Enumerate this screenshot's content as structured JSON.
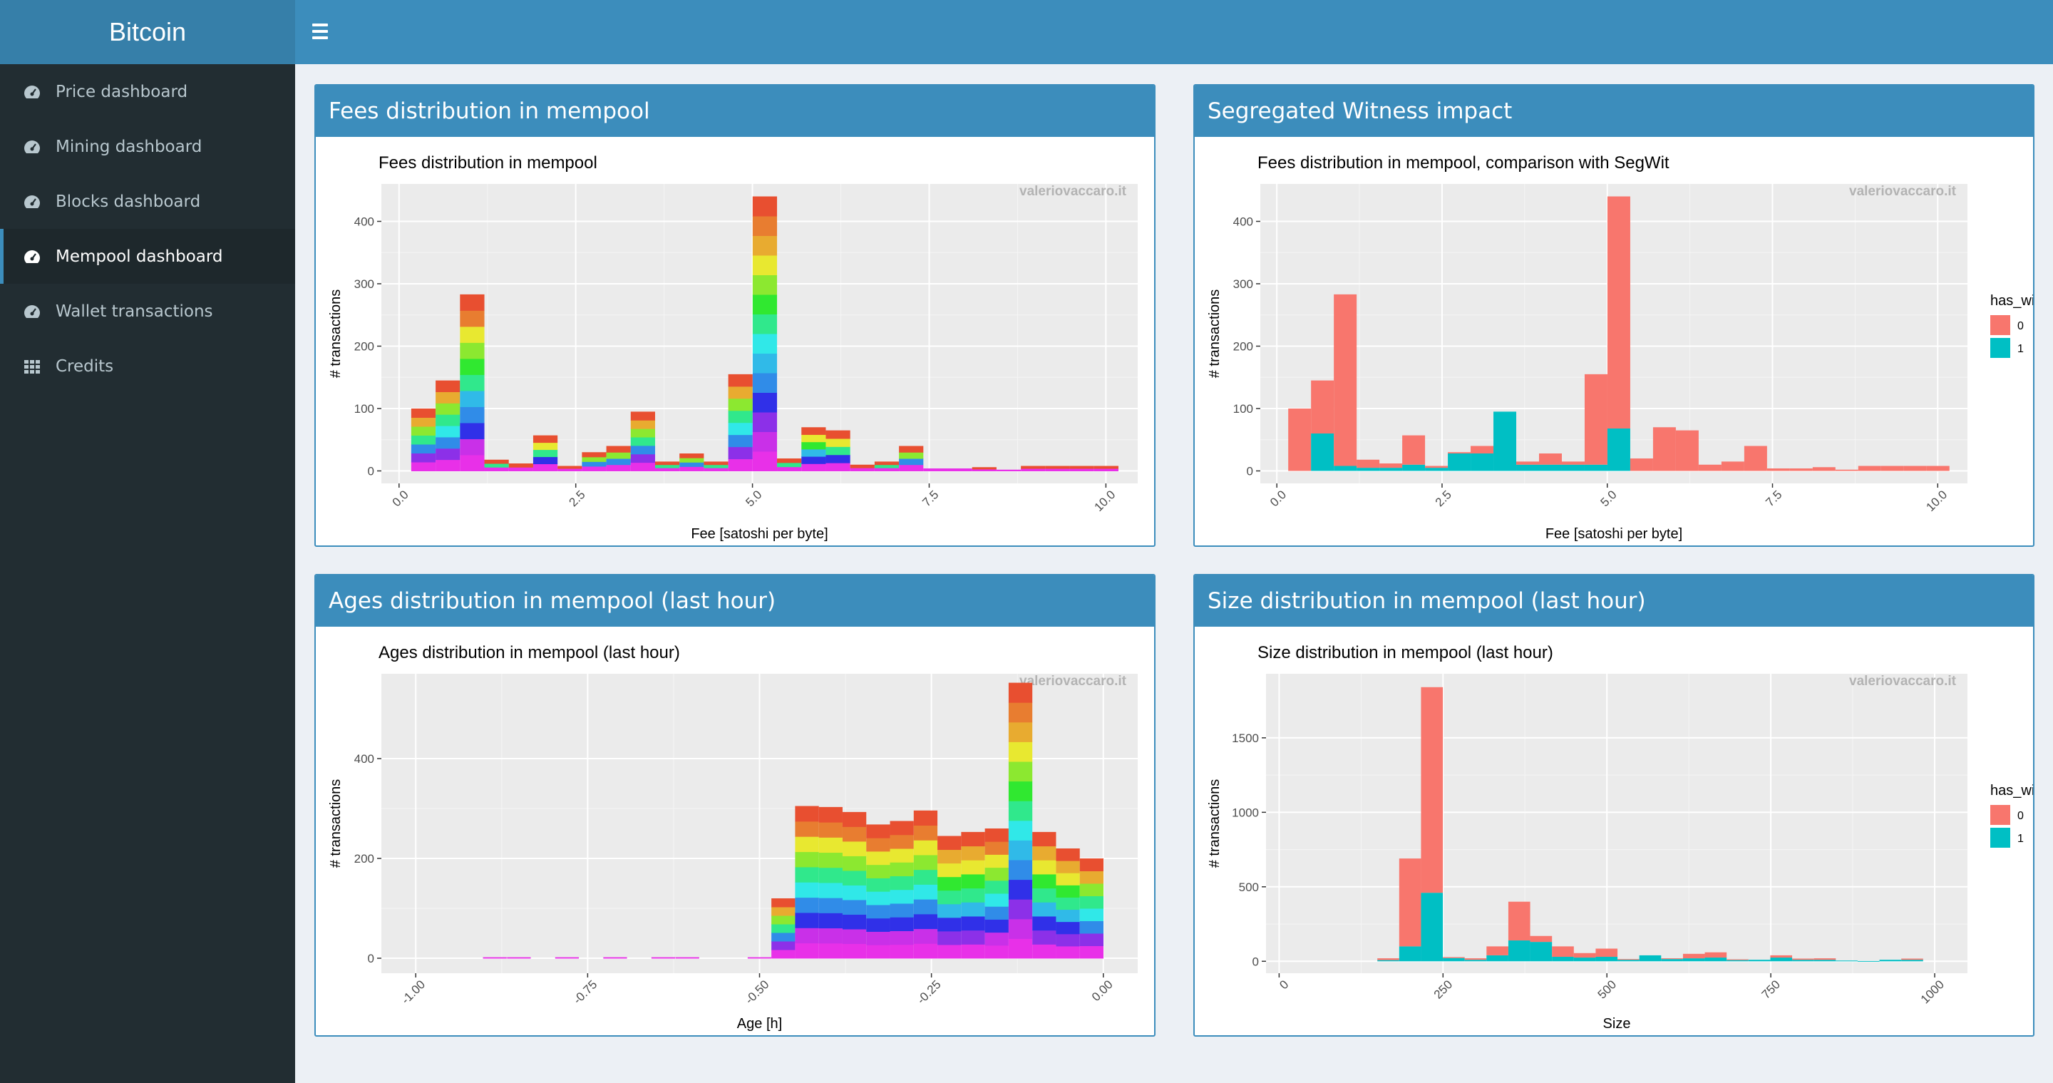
{
  "app": {
    "title": "Bitcoin"
  },
  "sidebar": {
    "items": [
      {
        "label": "Price dashboard",
        "icon": "dashboard-icon",
        "active": false
      },
      {
        "label": "Mining dashboard",
        "icon": "dashboard-icon",
        "active": false
      },
      {
        "label": "Blocks dashboard",
        "icon": "dashboard-icon",
        "active": false
      },
      {
        "label": "Mempool dashboard",
        "icon": "dashboard-icon",
        "active": true
      },
      {
        "label": "Wallet transactions",
        "icon": "dashboard-icon",
        "active": false
      },
      {
        "label": "Credits",
        "icon": "grid-icon",
        "active": false
      }
    ]
  },
  "boxes": {
    "fees": {
      "title": "Fees distribution in mempool"
    },
    "segwit": {
      "title": "Segregated Witness impact"
    },
    "ages": {
      "title": "Ages distribution in mempool (last hour)"
    },
    "size": {
      "title": "Size distribution in mempool (last hour)"
    }
  },
  "watermark": "valeriovaccaro.it",
  "chart_data": [
    {
      "id": "fees",
      "type": "bar",
      "stacked": "gradient",
      "title": "Fees distribution in mempool",
      "xlabel": "Fee [satoshi per byte]",
      "ylabel": "# transactions",
      "xlim": [
        -0.25,
        10.45
      ],
      "ylim": [
        -20,
        460
      ],
      "xticks": [
        0,
        2.5,
        5,
        7.5,
        10
      ],
      "xtick_labels": [
        "0.0",
        "2.5",
        "5.0",
        "7.5",
        "10.0"
      ],
      "yticks": [
        0,
        100,
        200,
        300,
        400
      ],
      "bin_width": 0.345,
      "x": [
        0.345,
        0.69,
        1.035,
        1.38,
        1.725,
        2.07,
        2.415,
        2.76,
        3.105,
        3.45,
        3.795,
        4.14,
        4.485,
        4.83,
        5.175,
        5.52,
        5.865,
        6.21,
        6.555,
        6.9,
        7.245,
        7.59,
        7.935,
        8.28,
        8.625,
        8.97,
        9.315,
        9.66,
        10.005
      ],
      "values": [
        100,
        145,
        283,
        18,
        12,
        57,
        8,
        30,
        40,
        95,
        15,
        28,
        15,
        155,
        440,
        20,
        70,
        65,
        10,
        15,
        40,
        4,
        4,
        6,
        2,
        8,
        8,
        8,
        8
      ]
    },
    {
      "id": "segwit",
      "type": "bar",
      "stacked": true,
      "title": "Fees distribution in mempool, comparison with SegWit",
      "xlabel": "Fee [satoshi per byte]",
      "ylabel": "# transactions",
      "xlim": [
        -0.25,
        10.45
      ],
      "ylim": [
        -20,
        460
      ],
      "xticks": [
        0,
        2.5,
        5,
        7.5,
        10
      ],
      "xtick_labels": [
        "0.0",
        "2.5",
        "5.0",
        "7.5",
        "10.0"
      ],
      "yticks": [
        0,
        100,
        200,
        300,
        400
      ],
      "bin_width": 0.345,
      "legend": {
        "title": "has_witness",
        "position": "right",
        "entries": [
          "0",
          "1"
        ]
      },
      "x": [
        0.345,
        0.69,
        1.035,
        1.38,
        1.725,
        2.07,
        2.415,
        2.76,
        3.105,
        3.45,
        3.795,
        4.14,
        4.485,
        4.83,
        5.175,
        5.52,
        5.865,
        6.21,
        6.555,
        6.9,
        7.245,
        7.59,
        7.935,
        8.28,
        8.625,
        8.97,
        9.315,
        9.66,
        10.005
      ],
      "series": [
        {
          "name": "1",
          "color": "#00bfc4",
          "values": [
            0,
            60,
            8,
            5,
            5,
            10,
            5,
            28,
            28,
            95,
            10,
            10,
            10,
            10,
            68,
            0,
            0,
            0,
            0,
            0,
            0,
            0,
            0,
            0,
            0,
            0,
            0,
            0,
            0
          ]
        },
        {
          "name": "0",
          "color": "#f8766d",
          "values": [
            100,
            85,
            275,
            13,
            7,
            47,
            3,
            2,
            12,
            0,
            5,
            18,
            5,
            145,
            372,
            20,
            70,
            65,
            10,
            15,
            40,
            4,
            4,
            6,
            2,
            8,
            8,
            8,
            8
          ]
        }
      ]
    },
    {
      "id": "ages",
      "type": "bar",
      "stacked": "gradient",
      "title": "Ages distribution in mempool (last hour)",
      "xlabel": "Age [h]",
      "ylabel": "# transactions",
      "xlim": [
        -1.05,
        0.05
      ],
      "ylim": [
        -30,
        570
      ],
      "xticks": [
        -1,
        -0.75,
        -0.5,
        -0.25,
        0
      ],
      "xtick_labels": [
        "-1.00",
        "-0.75",
        "-0.50",
        "-0.25",
        "0.00"
      ],
      "yticks": [
        0,
        200,
        400
      ],
      "bin_width": 0.0345,
      "x": [
        -0.885,
        -0.85,
        -0.78,
        -0.71,
        -0.64,
        -0.605,
        -0.5,
        -0.4655,
        -0.431,
        -0.3965,
        -0.362,
        -0.3275,
        -0.293,
        -0.2585,
        -0.224,
        -0.1895,
        -0.155,
        -0.1205,
        -0.086,
        -0.0515,
        -0.017
      ],
      "values": [
        2,
        2,
        2,
        2,
        2,
        2,
        2,
        120,
        305,
        303,
        293,
        268,
        275,
        296,
        245,
        253,
        260,
        552,
        253,
        220,
        200
      ]
    },
    {
      "id": "size",
      "type": "bar",
      "stacked": true,
      "title": "Size distribution in mempool (last hour)",
      "xlabel": "Size",
      "ylabel": "# transactions",
      "xlim": [
        -20,
        1050
      ],
      "ylim": [
        -80,
        1930
      ],
      "xticks": [
        0,
        250,
        500,
        750,
        1000
      ],
      "xtick_labels": [
        "0",
        "250",
        "500",
        "750",
        "1000"
      ],
      "yticks": [
        0,
        500,
        1000,
        1500
      ],
      "bin_width": 33.3,
      "legend": {
        "title": "has_witness",
        "position": "right",
        "entries": [
          "0",
          "1"
        ]
      },
      "x": [
        166.5,
        199.8,
        233.1,
        266.4,
        299.7,
        333,
        366.3,
        399.6,
        432.9,
        466.2,
        499.5,
        532.8,
        566.1,
        599.4,
        632.7,
        666,
        699.3,
        732.6,
        765.9,
        799.2,
        832.5,
        865.8,
        899.1,
        932.4,
        965.7
      ],
      "series": [
        {
          "name": "1",
          "color": "#00bfc4",
          "values": [
            8,
            100,
            460,
            22,
            10,
            40,
            140,
            130,
            30,
            25,
            30,
            10,
            40,
            15,
            20,
            25,
            8,
            10,
            25,
            10,
            10,
            5,
            2,
            10,
            10
          ]
        },
        {
          "name": "0",
          "color": "#f8766d",
          "values": [
            12,
            590,
            1380,
            6,
            10,
            60,
            260,
            40,
            70,
            30,
            55,
            5,
            0,
            5,
            30,
            35,
            5,
            0,
            15,
            8,
            10,
            0,
            0,
            0,
            8
          ]
        }
      ]
    }
  ]
}
